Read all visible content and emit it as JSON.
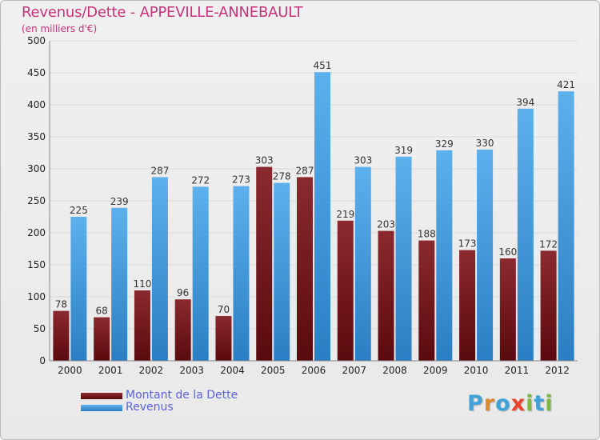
{
  "title": "Revenus/Dette - APPEVILLE-ANNEBAULT",
  "subtitle": "(en milliers d'€)",
  "logo": {
    "letters": [
      "P",
      "r",
      "o",
      "x",
      "i",
      "t",
      "i"
    ],
    "colors": [
      "#3fa2d9",
      "#e0892b",
      "#3fa2d9",
      "#e9442b",
      "#7db93e",
      "#3fa2d9",
      "#7db93e"
    ]
  },
  "colors": {
    "title": "#c8327a",
    "dette": "#7a1a1f",
    "revenus": "#4aa2e4",
    "grid": "#d8d8d8",
    "axis_text": "#222222",
    "legend_text": "#5a63d8"
  },
  "chart_data": {
    "type": "bar",
    "categories": [
      "2000",
      "2001",
      "2002",
      "2003",
      "2004",
      "2005",
      "2006",
      "2007",
      "2008",
      "2009",
      "2010",
      "2011",
      "2012"
    ],
    "series": [
      {
        "name": "Montant de la Dette",
        "values": [
          78,
          68,
          110,
          96,
          70,
          303,
          287,
          219,
          203,
          188,
          173,
          160,
          172
        ]
      },
      {
        "name": "Revenus",
        "values": [
          225,
          239,
          287,
          272,
          273,
          278,
          451,
          303,
          319,
          329,
          330,
          394,
          421
        ]
      }
    ],
    "title": "Revenus/Dette - APPEVILLE-ANNEBAULT",
    "subtitle": "(en milliers d'€)",
    "xlabel": "",
    "ylabel": "",
    "ylim": [
      0,
      500
    ],
    "yticks": [
      0,
      50,
      100,
      150,
      200,
      250,
      300,
      350,
      400,
      450,
      500
    ],
    "grid": true,
    "legend": "bottom-left"
  }
}
